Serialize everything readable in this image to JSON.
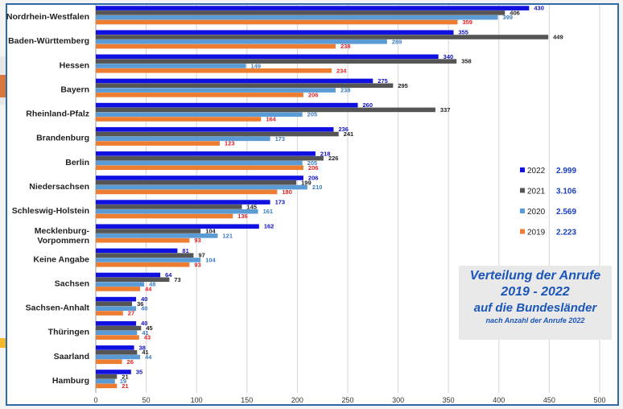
{
  "chart_data": {
    "type": "bar",
    "orientation": "horizontal",
    "title_lines": [
      "Verteilung der Anrufe",
      "2019 - 2022",
      "auf die Bundesländer",
      "nach Anzahl der Anrufe 2022"
    ],
    "categories": [
      "Nordrhein-Westfalen",
      "Baden-Württemberg",
      "Hessen",
      "Bayern",
      "Rheinland-Pfalz",
      "Brandenburg",
      "Berlin",
      "Niedersachsen",
      "Schleswig-Holstein",
      "Mecklenburg-Vorpommern",
      "Keine Angabe",
      "Sachsen",
      "Sachsen-Anhalt",
      "Thüringen",
      "Saarland",
      "Hamburg"
    ],
    "category_display": [
      [
        "Nordrhein-Westfalen"
      ],
      [
        "Baden-Württemberg"
      ],
      [
        "Hessen"
      ],
      [
        "Bayern"
      ],
      [
        "Rheinland-Pfalz"
      ],
      [
        "Brandenburg"
      ],
      [
        "Berlin"
      ],
      [
        "Niedersachsen"
      ],
      [
        "Schleswig-Holstein"
      ],
      [
        "Mecklenburg-",
        "Vorpommern"
      ],
      [
        "Keine Angabe"
      ],
      [
        "Sachsen"
      ],
      [
        "Sachsen-Anhalt"
      ],
      [
        "Thüringen"
      ],
      [
        "Saarland"
      ],
      [
        "Hamburg"
      ]
    ],
    "series": [
      {
        "name": "2022",
        "total": "2.999",
        "color": "#1010e0",
        "label_color": "#1010c0",
        "values": [
          430,
          355,
          340,
          275,
          260,
          236,
          218,
          206,
          173,
          162,
          81,
          64,
          40,
          40,
          38,
          35
        ]
      },
      {
        "name": "2021",
        "total": "3.106",
        "color": "#555555",
        "label_color": "#222222",
        "values": [
          406,
          449,
          358,
          295,
          337,
          241,
          226,
          199,
          145,
          104,
          97,
          73,
          36,
          45,
          41,
          21
        ]
      },
      {
        "name": "2020",
        "total": "2.569",
        "color": "#5b9bd5",
        "label_color": "#3a7cc0",
        "values": [
          399,
          289,
          149,
          238,
          205,
          173,
          205,
          210,
          161,
          121,
          104,
          48,
          40,
          41,
          44,
          19
        ]
      },
      {
        "name": "2019",
        "total": "2.223",
        "color": "#ed7d31",
        "label_color": "#e02020",
        "values": [
          359,
          238,
          234,
          206,
          164,
          123,
          206,
          180,
          136,
          93,
          93,
          44,
          27,
          43,
          26,
          21
        ]
      }
    ],
    "x_ticks": [
      0,
      50,
      100,
      150,
      200,
      250,
      300,
      350,
      400,
      450,
      500
    ],
    "xlim": [
      0,
      500
    ],
    "grid": true,
    "legend_position": "right"
  },
  "colors": {
    "frame": "#2f6aa8",
    "title": "#1b56b8",
    "title_box": "#e9e9e9"
  }
}
